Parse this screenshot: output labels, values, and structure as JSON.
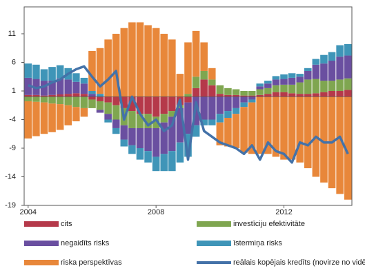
{
  "chart_data": {
    "type": "bar",
    "stacked": true,
    "categories": [
      "2004",
      null,
      null,
      null,
      null,
      null,
      null,
      null,
      null,
      null,
      null,
      null,
      null,
      null,
      null,
      null,
      "2008",
      null,
      null,
      null,
      null,
      null,
      null,
      null,
      null,
      null,
      null,
      null,
      null,
      null,
      null,
      null,
      "2012",
      null,
      null,
      null,
      null,
      null,
      null,
      null,
      null
    ],
    "ylim": [
      -19,
      15.7
    ],
    "yticks": [
      -19,
      -14,
      -9,
      -4,
      1,
      6,
      11
    ],
    "grid": false,
    "series": [
      {
        "name": "cits",
        "color": "#b5394a",
        "values": [
          0.3,
          0.3,
          0.2,
          0.3,
          0.4,
          0.5,
          0.6,
          0.5,
          -0.5,
          -0.8,
          -1,
          -1.5,
          -2,
          -2.5,
          -3,
          -3,
          -3.5,
          -3,
          -2.5,
          -1.5,
          -1,
          1.5,
          3,
          2,
          0.5,
          0.3,
          0.3,
          0.2,
          0.2,
          0.3,
          0.5,
          0.8,
          0.8,
          0.6,
          0.5,
          0.5,
          0.6,
          0.8,
          1,
          1,
          1.2
        ]
      },
      {
        "name": "investīciju efektivitāte",
        "color": "#7fa650",
        "values": [
          -0.8,
          -0.9,
          -1,
          -1.2,
          -1.3,
          -1.5,
          -1.8,
          -2,
          -1.5,
          -1.5,
          -2,
          -2.5,
          -3,
          -3,
          -2.5,
          -2.5,
          -2,
          -1.5,
          -1,
          -0.5,
          0.5,
          2,
          1.5,
          1,
          1.5,
          1.2,
          1,
          0.8,
          0.8,
          1,
          1,
          1.2,
          1.3,
          1.5,
          2,
          2.5,
          2.5,
          2,
          1.8,
          2,
          2
        ]
      },
      {
        "name": "negaidīts risks",
        "color": "#6a4fa0",
        "values": [
          3,
          2.8,
          2.6,
          2.5,
          2.8,
          2.5,
          2,
          1.8,
          0.5,
          -0.5,
          -1,
          -1.5,
          -2.5,
          -3,
          -3.5,
          -4,
          -5,
          -5.5,
          -6,
          -6,
          -5.5,
          -5,
          -4,
          -4,
          -3,
          -2.5,
          -2,
          -1,
          -0.5,
          0.5,
          0.8,
          1,
          1,
          1.2,
          1,
          1.5,
          2.5,
          3,
          3.5,
          4,
          4
        ]
      },
      {
        "name": "īstermiņa risks",
        "color": "#3f95b8",
        "values": [
          2.5,
          2.5,
          2,
          2.4,
          2.3,
          2,
          1.5,
          1,
          0.5,
          0.5,
          -0.5,
          -1,
          -1.2,
          -1.5,
          -2,
          -2,
          -2.5,
          -3,
          -3.5,
          -3.5,
          -4,
          -2,
          -1,
          -1,
          -1.5,
          -1.2,
          -1,
          -0.8,
          -0.5,
          0.5,
          0.5,
          0.6,
          0.8,
          0.8,
          0.5,
          0.5,
          1,
          1.5,
          1.5,
          2,
          2
        ]
      },
      {
        "name": "riska perspektīvas",
        "color": "#e8873a",
        "values": [
          -6.5,
          -6,
          -5.5,
          -5,
          -4.5,
          -3.5,
          -2.5,
          -1.5,
          7,
          8,
          10,
          11,
          12,
          13,
          13,
          12.5,
          12,
          11,
          10,
          4,
          9,
          8,
          5,
          2,
          -4,
          -5,
          -6,
          -8,
          -9,
          -10,
          -10,
          -10.5,
          -11,
          -11,
          -11.5,
          -12.5,
          -14,
          -15,
          -16,
          -17,
          -18
        ]
      },
      {
        "name": "reālais kopējais kredīts (novirze no vidējā)",
        "color": "#4472a8",
        "type": "line",
        "values": [
          2,
          1.5,
          1.8,
          2.5,
          3,
          4,
          4.8,
          5.3,
          3.5,
          1.8,
          3,
          4.5,
          -4,
          0,
          -3,
          -5,
          -4,
          -6,
          -5,
          -0.5,
          -11,
          -1,
          -6,
          -7,
          -8,
          -8.5,
          -9,
          -10,
          -8.5,
          -11,
          -8,
          -9.5,
          -10,
          -11.5,
          -8,
          -8.5,
          -7,
          -8,
          -8,
          -7,
          -10
        ]
      }
    ]
  }
}
